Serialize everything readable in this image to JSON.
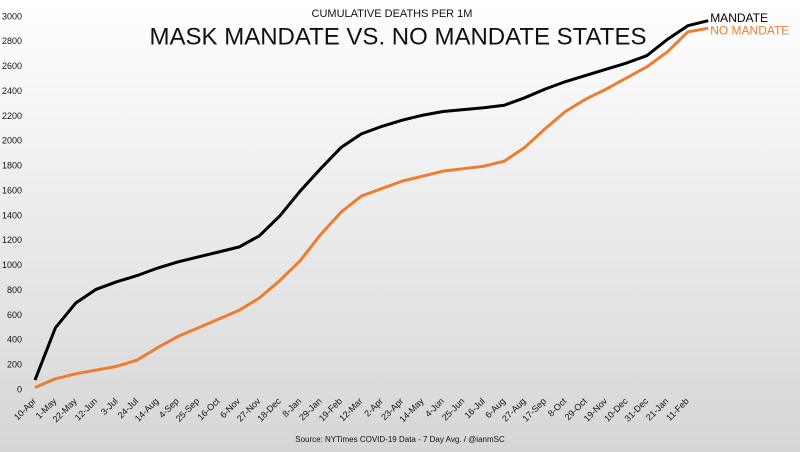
{
  "chart_data": {
    "type": "line",
    "title": "MASK MANDATE VS. NO MANDATE STATES",
    "subtitle": "CUMULATIVE  DEATHS PER 1M",
    "source": "Source: NYTimes COVID-19 Data - 7 Day Avg. / @ianmSC",
    "categories": [
      "10-Apr",
      "1-May",
      "22-May",
      "12-Jun",
      "3-Jul",
      "24-Jul",
      "14-Aug",
      "4-Sep",
      "25-Sep",
      "16-Oct",
      "6-Nov",
      "27-Nov",
      "18-Dec",
      "8-Jan",
      "29-Jan",
      "19-Feb",
      "12-Mar",
      "2-Apr",
      "23-Apr",
      "14-May",
      "4-Jun",
      "25-Jun",
      "16-Jul",
      "6-Aug",
      "27-Aug",
      "17-Sep",
      "8-Oct",
      "29-Oct",
      "19-Nov",
      "10-Dec",
      "31-Dec",
      "21-Jan",
      "11-Feb",
      null
    ],
    "series": [
      {
        "name": "MANDATE",
        "color": "#000000",
        "values": [
          80,
          500,
          700,
          810,
          870,
          920,
          980,
          1030,
          1070,
          1110,
          1150,
          1240,
          1400,
          1600,
          1780,
          1950,
          2060,
          2120,
          2170,
          2210,
          2240,
          2255,
          2270,
          2290,
          2350,
          2420,
          2480,
          2530,
          2580,
          2630,
          2690,
          2820,
          2930,
          2970
        ]
      },
      {
        "name": "NO MANDATE",
        "color": "#ed7d31",
        "values": [
          20,
          90,
          130,
          160,
          190,
          240,
          340,
          430,
          500,
          570,
          640,
          740,
          880,
          1040,
          1250,
          1430,
          1560,
          1620,
          1680,
          1720,
          1760,
          1780,
          1800,
          1840,
          1950,
          2100,
          2240,
          2340,
          2420,
          2510,
          2600,
          2720,
          2880,
          2910
        ]
      }
    ],
    "ylim": [
      0,
      3000
    ],
    "yticks": [
      0,
      200,
      400,
      600,
      800,
      1000,
      1200,
      1400,
      1600,
      1800,
      2000,
      2200,
      2400,
      2600,
      2800,
      3000
    ],
    "grid": false
  }
}
